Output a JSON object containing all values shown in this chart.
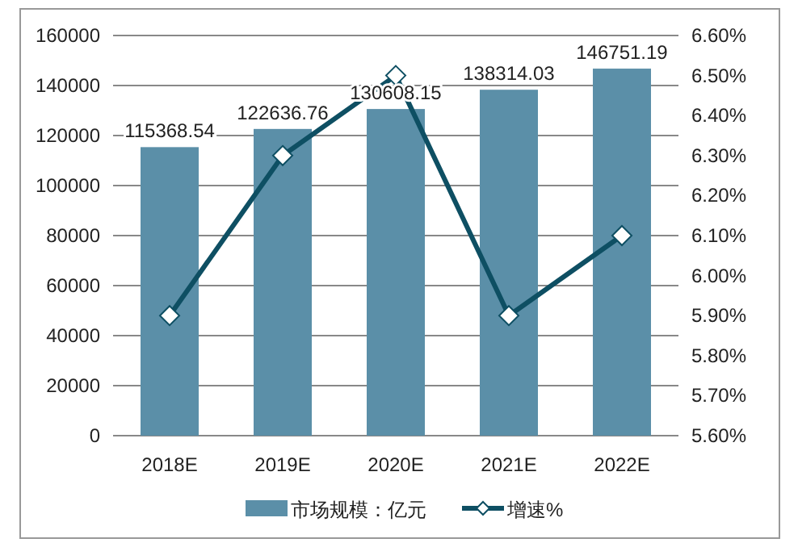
{
  "chart_data": {
    "type": "bar",
    "categories": [
      "2018E",
      "2019E",
      "2020E",
      "2021E",
      "2022E"
    ],
    "series": [
      {
        "name": "市场规模：亿元",
        "color": "#5b8fa8",
        "values": [
          115368.54,
          122636.76,
          130608.15,
          138314.03,
          146751.19
        ],
        "value_labels": [
          "115368.54",
          "122636.76",
          "130608.15",
          "138314.03",
          "146751.19"
        ]
      },
      {
        "name": "增速%",
        "type": "line",
        "axis": "y2",
        "color": "#0e4f63",
        "marker": "diamond",
        "values": [
          5.9,
          6.3,
          6.5,
          5.9,
          6.1
        ]
      }
    ],
    "ylim": [
      0,
      160000
    ],
    "yticks": [
      0,
      20000,
      40000,
      60000,
      80000,
      100000,
      120000,
      140000,
      160000
    ],
    "y2lim": [
      5.6,
      6.6
    ],
    "y2ticks": [
      {
        "value": 5.6,
        "label": "5.60%"
      },
      {
        "value": 5.7,
        "label": "5.70%"
      },
      {
        "value": 5.8,
        "label": "5.80%"
      },
      {
        "value": 5.9,
        "label": "5.90%"
      },
      {
        "value": 6.0,
        "label": "6.00%"
      },
      {
        "value": 6.1,
        "label": "6.10%"
      },
      {
        "value": 6.2,
        "label": "6.20%"
      },
      {
        "value": 6.3,
        "label": "6.30%"
      },
      {
        "value": 6.4,
        "label": "6.40%"
      },
      {
        "value": 6.5,
        "label": "6.50%"
      },
      {
        "value": 6.6,
        "label": "6.60%"
      }
    ],
    "grid": "y",
    "legend": "bottom"
  }
}
